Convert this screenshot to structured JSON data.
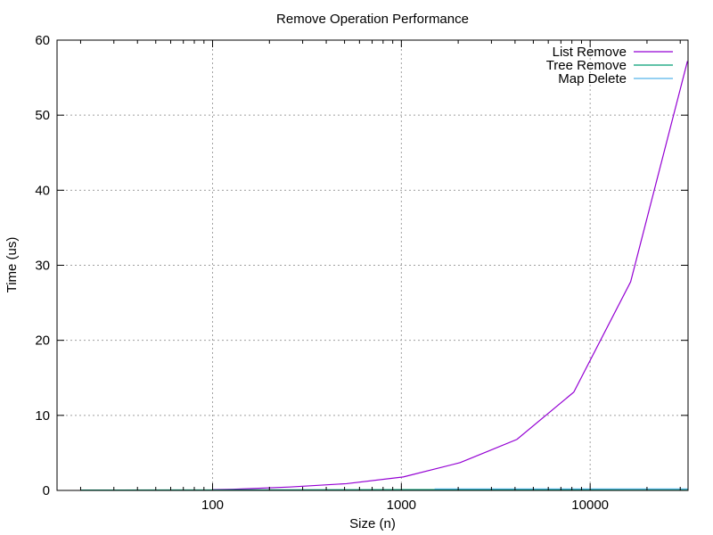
{
  "chart_data": {
    "type": "line",
    "title": "Remove Operation Performance",
    "xlabel": "Size (n)",
    "ylabel": "Time (us)",
    "xscale": "log",
    "xlim": [
      15,
      33000
    ],
    "ylim": [
      0,
      60
    ],
    "grid": true,
    "legend_position": "top-right",
    "x_ticks": [
      100,
      1000,
      10000
    ],
    "x_tick_labels": [
      "100",
      "1000",
      "10000"
    ],
    "y_ticks": [
      0,
      10,
      20,
      30,
      40,
      50,
      60
    ],
    "y_tick_labels": [
      "0",
      "10",
      "20",
      "30",
      "40",
      "50",
      "60"
    ],
    "series": [
      {
        "name": "List Remove",
        "color": "#9400d3",
        "x": [
          100,
          128,
          256,
          512,
          1024,
          2048,
          4096,
          8192,
          16384,
          32768
        ],
        "y": [
          0.1,
          0.15,
          0.45,
          0.9,
          1.8,
          3.7,
          6.8,
          13.1,
          27.8,
          57.2
        ]
      },
      {
        "name": "Tree Remove",
        "color": "#009e73",
        "x": [
          20,
          32,
          64,
          128,
          256,
          512,
          1024,
          2048,
          4096,
          8192,
          16384,
          32768
        ],
        "y": [
          0.05,
          0.05,
          0.06,
          0.07,
          0.08,
          0.09,
          0.1,
          0.11,
          0.12,
          0.13,
          0.14,
          0.15
        ]
      },
      {
        "name": "Map Delete",
        "color": "#56b4e9",
        "x": [
          1500,
          2048,
          4096,
          8192,
          16384,
          32768
        ],
        "y": [
          0.2,
          0.2,
          0.2,
          0.2,
          0.2,
          0.2
        ]
      }
    ]
  }
}
